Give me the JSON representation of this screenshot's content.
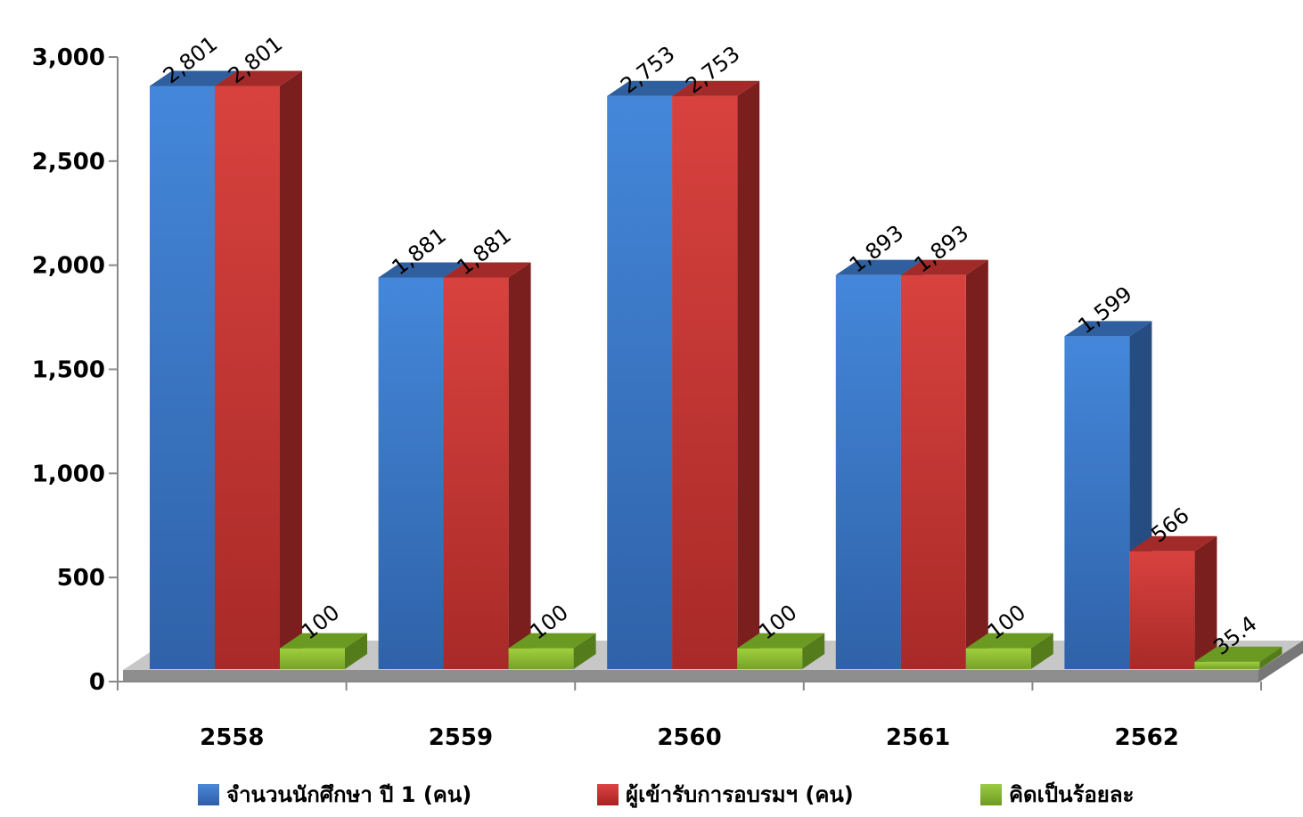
{
  "chart_data": {
    "type": "bar",
    "categories": [
      "2558",
      "2559",
      "2560",
      "2561",
      "2562"
    ],
    "series": [
      {
        "name": "จำนวนนักศึกษา ปี 1 (คน)",
        "values": [
          2801,
          1881,
          2753,
          1893,
          1599
        ],
        "color": "#3a78c8",
        "labels": [
          "2,801",
          "1,881",
          "2,753",
          "1,893",
          "1,599"
        ]
      },
      {
        "name": "ผู้เข้ารับการอบรมฯ (คน)",
        "values": [
          2801,
          1881,
          2753,
          1893,
          566
        ],
        "color": "#cc3333",
        "labels": [
          "2,801",
          "1,881",
          "2,753",
          "1,893",
          "566"
        ]
      },
      {
        "name": "คิดเป็นร้อยละ",
        "values": [
          100,
          100,
          100,
          100,
          35.4
        ],
        "color": "#8ab832",
        "labels": [
          "100",
          "100",
          "100",
          "100",
          "35.4"
        ]
      }
    ],
    "ylim": [
      0,
      3000
    ],
    "yticks": [
      "0",
      "500",
      "1,000",
      "1,500",
      "2,000",
      "2,500",
      "3,000"
    ],
    "ytick_values": [
      0,
      500,
      1000,
      1500,
      2000,
      2500,
      3000
    ],
    "legend_position": "bottom",
    "grid": false,
    "style": "3d-column"
  }
}
